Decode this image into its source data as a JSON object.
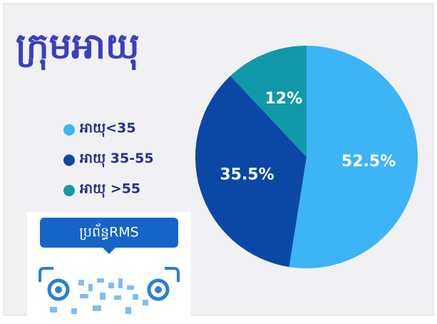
{
  "chart_data": {
    "type": "pie",
    "title": "ក្រុមអាយុ",
    "categories": [
      "អាយុ<35",
      "អាយុ 35-55",
      "អាយុ >55"
    ],
    "values": [
      52.5,
      35.5,
      12
    ],
    "value_labels": [
      "52.5%",
      "35.5%",
      "12%"
    ],
    "colors": [
      "#3db4f6",
      "#0b48a6",
      "#1299a9"
    ],
    "legend": "left",
    "annotations": [
      "ប្រព័ន្ធRMS"
    ]
  }
}
